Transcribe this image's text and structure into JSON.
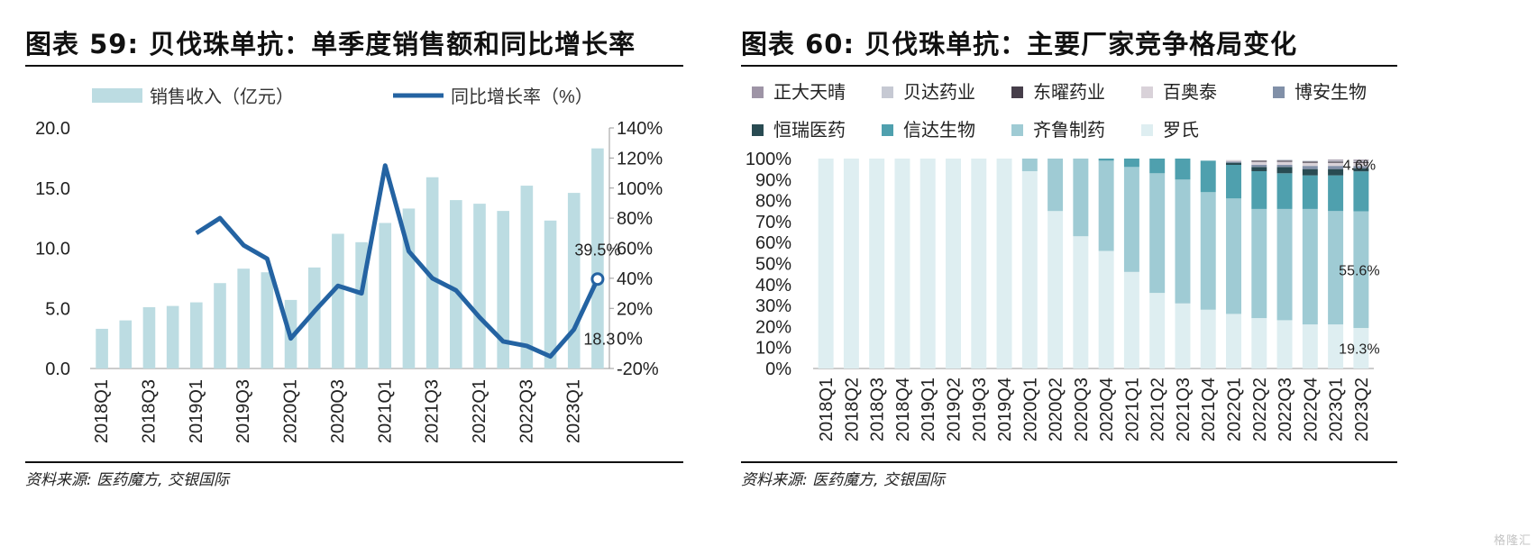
{
  "left": {
    "title": "图表 59: 贝伐珠单抗：单季度销售额和同比增长率",
    "source": "资料来源: 医药魔方, 交银国际",
    "chart_data": {
      "type": "bar+line",
      "categories": [
        "2018Q1",
        "2018Q2",
        "2018Q3",
        "2018Q4",
        "2019Q1",
        "2019Q2",
        "2019Q3",
        "2019Q4",
        "2020Q1",
        "2020Q2",
        "2020Q3",
        "2020Q4",
        "2021Q1",
        "2021Q2",
        "2021Q3",
        "2021Q4",
        "2022Q1",
        "2022Q2",
        "2022Q3",
        "2022Q4",
        "2023Q1",
        "2023Q2"
      ],
      "tick_labels": [
        "2018Q1",
        "2018Q3",
        "2019Q1",
        "2019Q3",
        "2020Q1",
        "2020Q3",
        "2021Q1",
        "2021Q3",
        "2022Q1",
        "2022Q3",
        "2023Q1"
      ],
      "series": [
        {
          "name": "销售收入（亿元）",
          "type": "bar",
          "axis": "left",
          "color": "#bcdce2",
          "values": [
            3.3,
            4.0,
            5.1,
            5.2,
            5.5,
            7.1,
            8.3,
            8.0,
            5.7,
            8.4,
            11.2,
            10.5,
            12.1,
            13.3,
            15.9,
            14.0,
            13.7,
            13.1,
            15.2,
            12.3,
            14.6,
            18.3
          ]
        },
        {
          "name": "同比增长率（%）",
          "type": "line",
          "axis": "right",
          "color": "#2463a2",
          "values": [
            null,
            null,
            null,
            null,
            70,
            80,
            62,
            53,
            0,
            18,
            35,
            30,
            115,
            58,
            40,
            32,
            14,
            -2,
            -5,
            -12,
            6,
            39.5
          ]
        }
      ],
      "left_axis": {
        "min": 0,
        "max": 20,
        "ticks": [
          "0.0",
          "5.0",
          "10.0",
          "15.0",
          "20.0"
        ]
      },
      "right_axis": {
        "min": -20,
        "max": 140,
        "ticks": [
          "-20%",
          "0%",
          "20%",
          "40%",
          "60%",
          "80%",
          "100%",
          "120%",
          "140%"
        ]
      },
      "annotations": [
        {
          "text": "39.5%"
        },
        {
          "text": "18.3"
        }
      ],
      "legend_placement": "top"
    }
  },
  "right": {
    "title": "图表 60: 贝伐珠单抗：主要厂家竞争格局变化",
    "source": "资料来源: 医药魔方, 交银国际",
    "chart_data": {
      "type": "stacked-bar-100",
      "categories": [
        "2018Q1",
        "2018Q2",
        "2018Q3",
        "2018Q4",
        "2019Q1",
        "2019Q2",
        "2019Q3",
        "2019Q4",
        "2020Q1",
        "2020Q2",
        "2020Q3",
        "2020Q4",
        "2021Q1",
        "2021Q2",
        "2021Q3",
        "2021Q4",
        "2022Q1",
        "2022Q2",
        "2022Q3",
        "2022Q4",
        "2023Q1",
        "2023Q2"
      ],
      "series": [
        {
          "name": "罗氏",
          "color": "#deeef1",
          "values": [
            100,
            100,
            100,
            100,
            100,
            100,
            100,
            100,
            94,
            75,
            63,
            56,
            46,
            36,
            31,
            28,
            26,
            24,
            23,
            21,
            21,
            19.3
          ]
        },
        {
          "name": "齐鲁制药",
          "color": "#9fcbd4",
          "values": [
            0,
            0,
            0,
            0,
            0,
            0,
            0,
            0,
            6,
            25,
            37,
            43,
            50,
            57,
            59,
            56,
            55,
            52,
            53,
            55,
            54,
            55.6
          ]
        },
        {
          "name": "信达生物",
          "color": "#4fa0ae",
          "values": [
            0,
            0,
            0,
            0,
            0,
            0,
            0,
            0,
            0,
            0,
            0,
            1,
            4,
            7,
            10,
            15,
            16,
            18,
            17,
            16,
            17,
            19
          ]
        },
        {
          "name": "恒瑞医药",
          "color": "#294b52",
          "values": [
            0,
            0,
            0,
            0,
            0,
            0,
            0,
            0,
            0,
            0,
            0,
            0,
            0,
            0,
            0,
            0,
            1,
            2,
            3,
            3,
            3,
            1.5
          ]
        },
        {
          "name": "博安生物",
          "color": "#8190a8",
          "values": [
            0,
            0,
            0,
            0,
            0,
            0,
            0,
            0,
            0,
            0,
            0,
            0,
            0,
            0,
            0,
            0,
            0.5,
            1,
            1,
            1.5,
            1.5,
            1
          ]
        },
        {
          "name": "百奥泰",
          "color": "#d9d2d9",
          "values": [
            0,
            0,
            0,
            0,
            0,
            0,
            0,
            0,
            0,
            0,
            0,
            0,
            0,
            0,
            0,
            0,
            0.8,
            1.5,
            1.5,
            1.5,
            1.5,
            1.5
          ]
        },
        {
          "name": "东曜药业",
          "color": "#463e4a",
          "values": [
            0,
            0,
            0,
            0,
            0,
            0,
            0,
            0,
            0,
            0,
            0,
            0,
            0,
            0,
            0,
            0,
            0,
            0.5,
            0.5,
            0.5,
            0.5,
            0.5
          ]
        },
        {
          "name": "贝达药业",
          "color": "#c6c9d3",
          "values": [
            0,
            0,
            0,
            0,
            0,
            0,
            0,
            0,
            0,
            0,
            0,
            0,
            0,
            0,
            0,
            0,
            0,
            0,
            0.5,
            0.5,
            0.5,
            0.5
          ]
        },
        {
          "name": "正大天晴",
          "color": "#9e94a6",
          "values": [
            0,
            0,
            0,
            0,
            0,
            0,
            0,
            0,
            0,
            0,
            0,
            0,
            0,
            0,
            0,
            0,
            0,
            0,
            0,
            0,
            0.5,
            0.6
          ]
        }
      ],
      "legend_order": [
        "正大天晴",
        "贝达药业",
        "东曜药业",
        "百奥泰",
        "博安生物",
        "恒瑞医药",
        "信达生物",
        "齐鲁制药",
        "罗氏"
      ],
      "y_axis": {
        "min": 0,
        "max": 100,
        "ticks": [
          "0%",
          "10%",
          "20%",
          "30%",
          "40%",
          "50%",
          "60%",
          "70%",
          "80%",
          "90%",
          "100%"
        ]
      },
      "annotations": [
        {
          "text": "4.6%"
        },
        {
          "text": "55.6%"
        },
        {
          "text": "19.3%"
        }
      ],
      "legend_placement": "top"
    }
  },
  "watermark": "格隆汇"
}
